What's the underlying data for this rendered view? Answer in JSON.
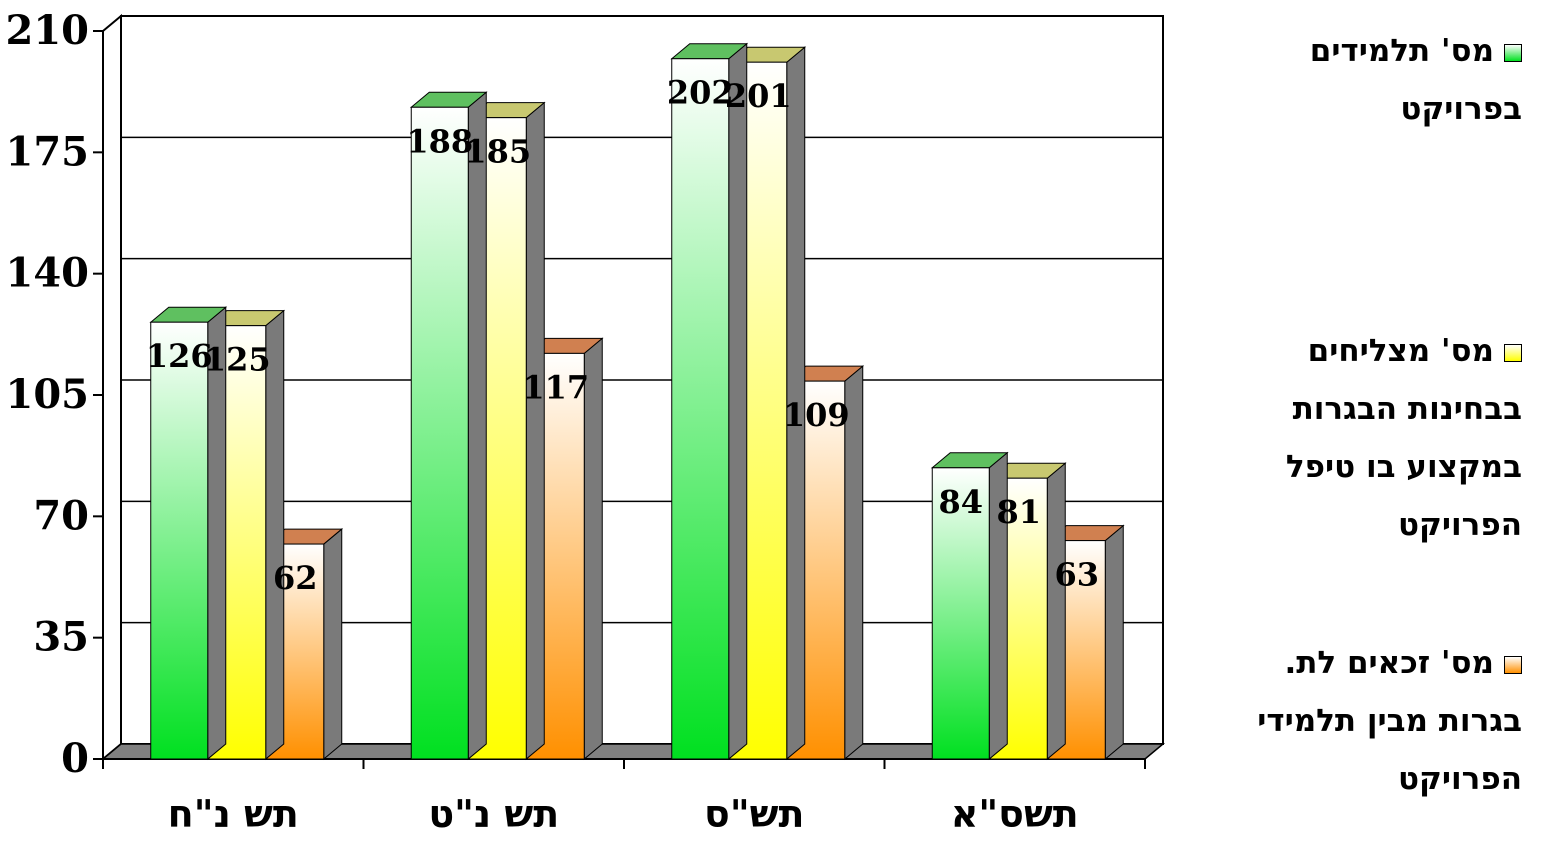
{
  "chart_data": {
    "type": "bar",
    "three_d": true,
    "title": "",
    "xlabel": "",
    "ylabel": "",
    "ylim": [
      0,
      210
    ],
    "yticks": [
      "0",
      "35",
      "70",
      "105",
      "140",
      "175",
      "210"
    ],
    "grid": true,
    "legend_position": "right",
    "categories": [
      "תש נ\"ח",
      "תש נ\"ט",
      "תש\"ס",
      "תשס\"א"
    ],
    "series": [
      {
        "name": "מס' תלמידים בפרויקט",
        "values": [
          126,
          188,
          202,
          84
        ],
        "color_top": "#ffffff",
        "color_bottom": "#00e020"
      },
      {
        "name": "מס' מצליחים בבחינות הבגרות במקצוע בו טיפל הפרויקט",
        "values": [
          125,
          185,
          201,
          81
        ],
        "color_top": "#ffffff",
        "color_bottom": "#ffff00"
      },
      {
        "name": "מס' זכאים לת. בגרות מבין תלמידי הפרויקט",
        "values": [
          62,
          117,
          109,
          63
        ],
        "color_top": "#ffffff",
        "color_bottom": "#ff9000"
      }
    ]
  }
}
